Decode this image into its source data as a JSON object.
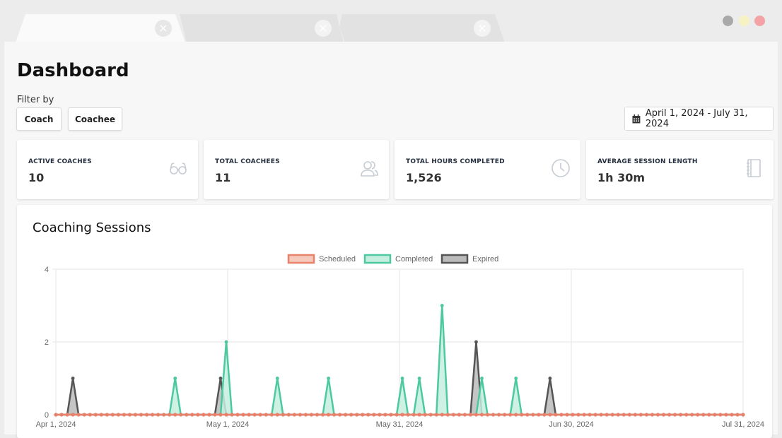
{
  "tabs": [
    {
      "name": "tab-1",
      "close": "×"
    },
    {
      "name": "tab-2",
      "close": "×"
    },
    {
      "name": "tab-3",
      "close": "×"
    }
  ],
  "window_controls": {
    "colors": [
      "#a9a9a9",
      "#f7f2c4",
      "#f3a3a5"
    ]
  },
  "header": {
    "title": "Dashboard",
    "filter_label": "Filter by"
  },
  "filters": {
    "coach": "Coach",
    "coachee": "Coachee",
    "date_range": "April 1, 2024 - July 31, 2024",
    "calendar_icon": "calendar-icon"
  },
  "stats": [
    {
      "label": "ACTIVE COACHES",
      "value": "10",
      "icon": "glasses-icon"
    },
    {
      "label": "TOTAL COACHEES",
      "value": "11",
      "icon": "users-icon"
    },
    {
      "label": "TOTAL HOURS COMPLETED",
      "value": "1,526",
      "icon": "clock-icon"
    },
    {
      "label": "AVERAGE SESSION LENGTH",
      "value": "1h 30m",
      "icon": "notebook-icon"
    }
  ],
  "chart_card": {
    "title": "Coaching Sessions"
  },
  "chart_data": {
    "type": "line",
    "title": "Coaching Sessions",
    "x_start": "2024-04-01",
    "x_end": "2024-07-31",
    "x_ticks": [
      "Apr 1, 2024",
      "May 1, 2024",
      "May 31, 2024",
      "Jun 30, 2024",
      "Jul 31, 2024"
    ],
    "y_ticks": [
      "0",
      "2",
      "4"
    ],
    "ylim": [
      0,
      4
    ],
    "legend_position": "top",
    "series": [
      {
        "name": "Scheduled",
        "color": "#e8806a",
        "fill": "#f6c9bd",
        "values": []
      },
      {
        "name": "Completed",
        "color": "#4cc9a0",
        "fill": "#c5eedf",
        "points": [
          {
            "date": "2024-04-22",
            "value": 1
          },
          {
            "date": "2024-05-01",
            "value": 2
          },
          {
            "date": "2024-05-10",
            "value": 1
          },
          {
            "date": "2024-05-19",
            "value": 1
          },
          {
            "date": "2024-06-01",
            "value": 1
          },
          {
            "date": "2024-06-04",
            "value": 1
          },
          {
            "date": "2024-06-08",
            "value": 3
          },
          {
            "date": "2024-06-15",
            "value": 1
          },
          {
            "date": "2024-06-21",
            "value": 1
          }
        ]
      },
      {
        "name": "Expired",
        "color": "#555555",
        "fill": "#bbbbbb",
        "points": [
          {
            "date": "2024-04-04",
            "value": 1
          },
          {
            "date": "2024-04-30",
            "value": 1
          },
          {
            "date": "2024-06-14",
            "value": 2
          },
          {
            "date": "2024-06-27",
            "value": 1
          }
        ]
      }
    ]
  }
}
